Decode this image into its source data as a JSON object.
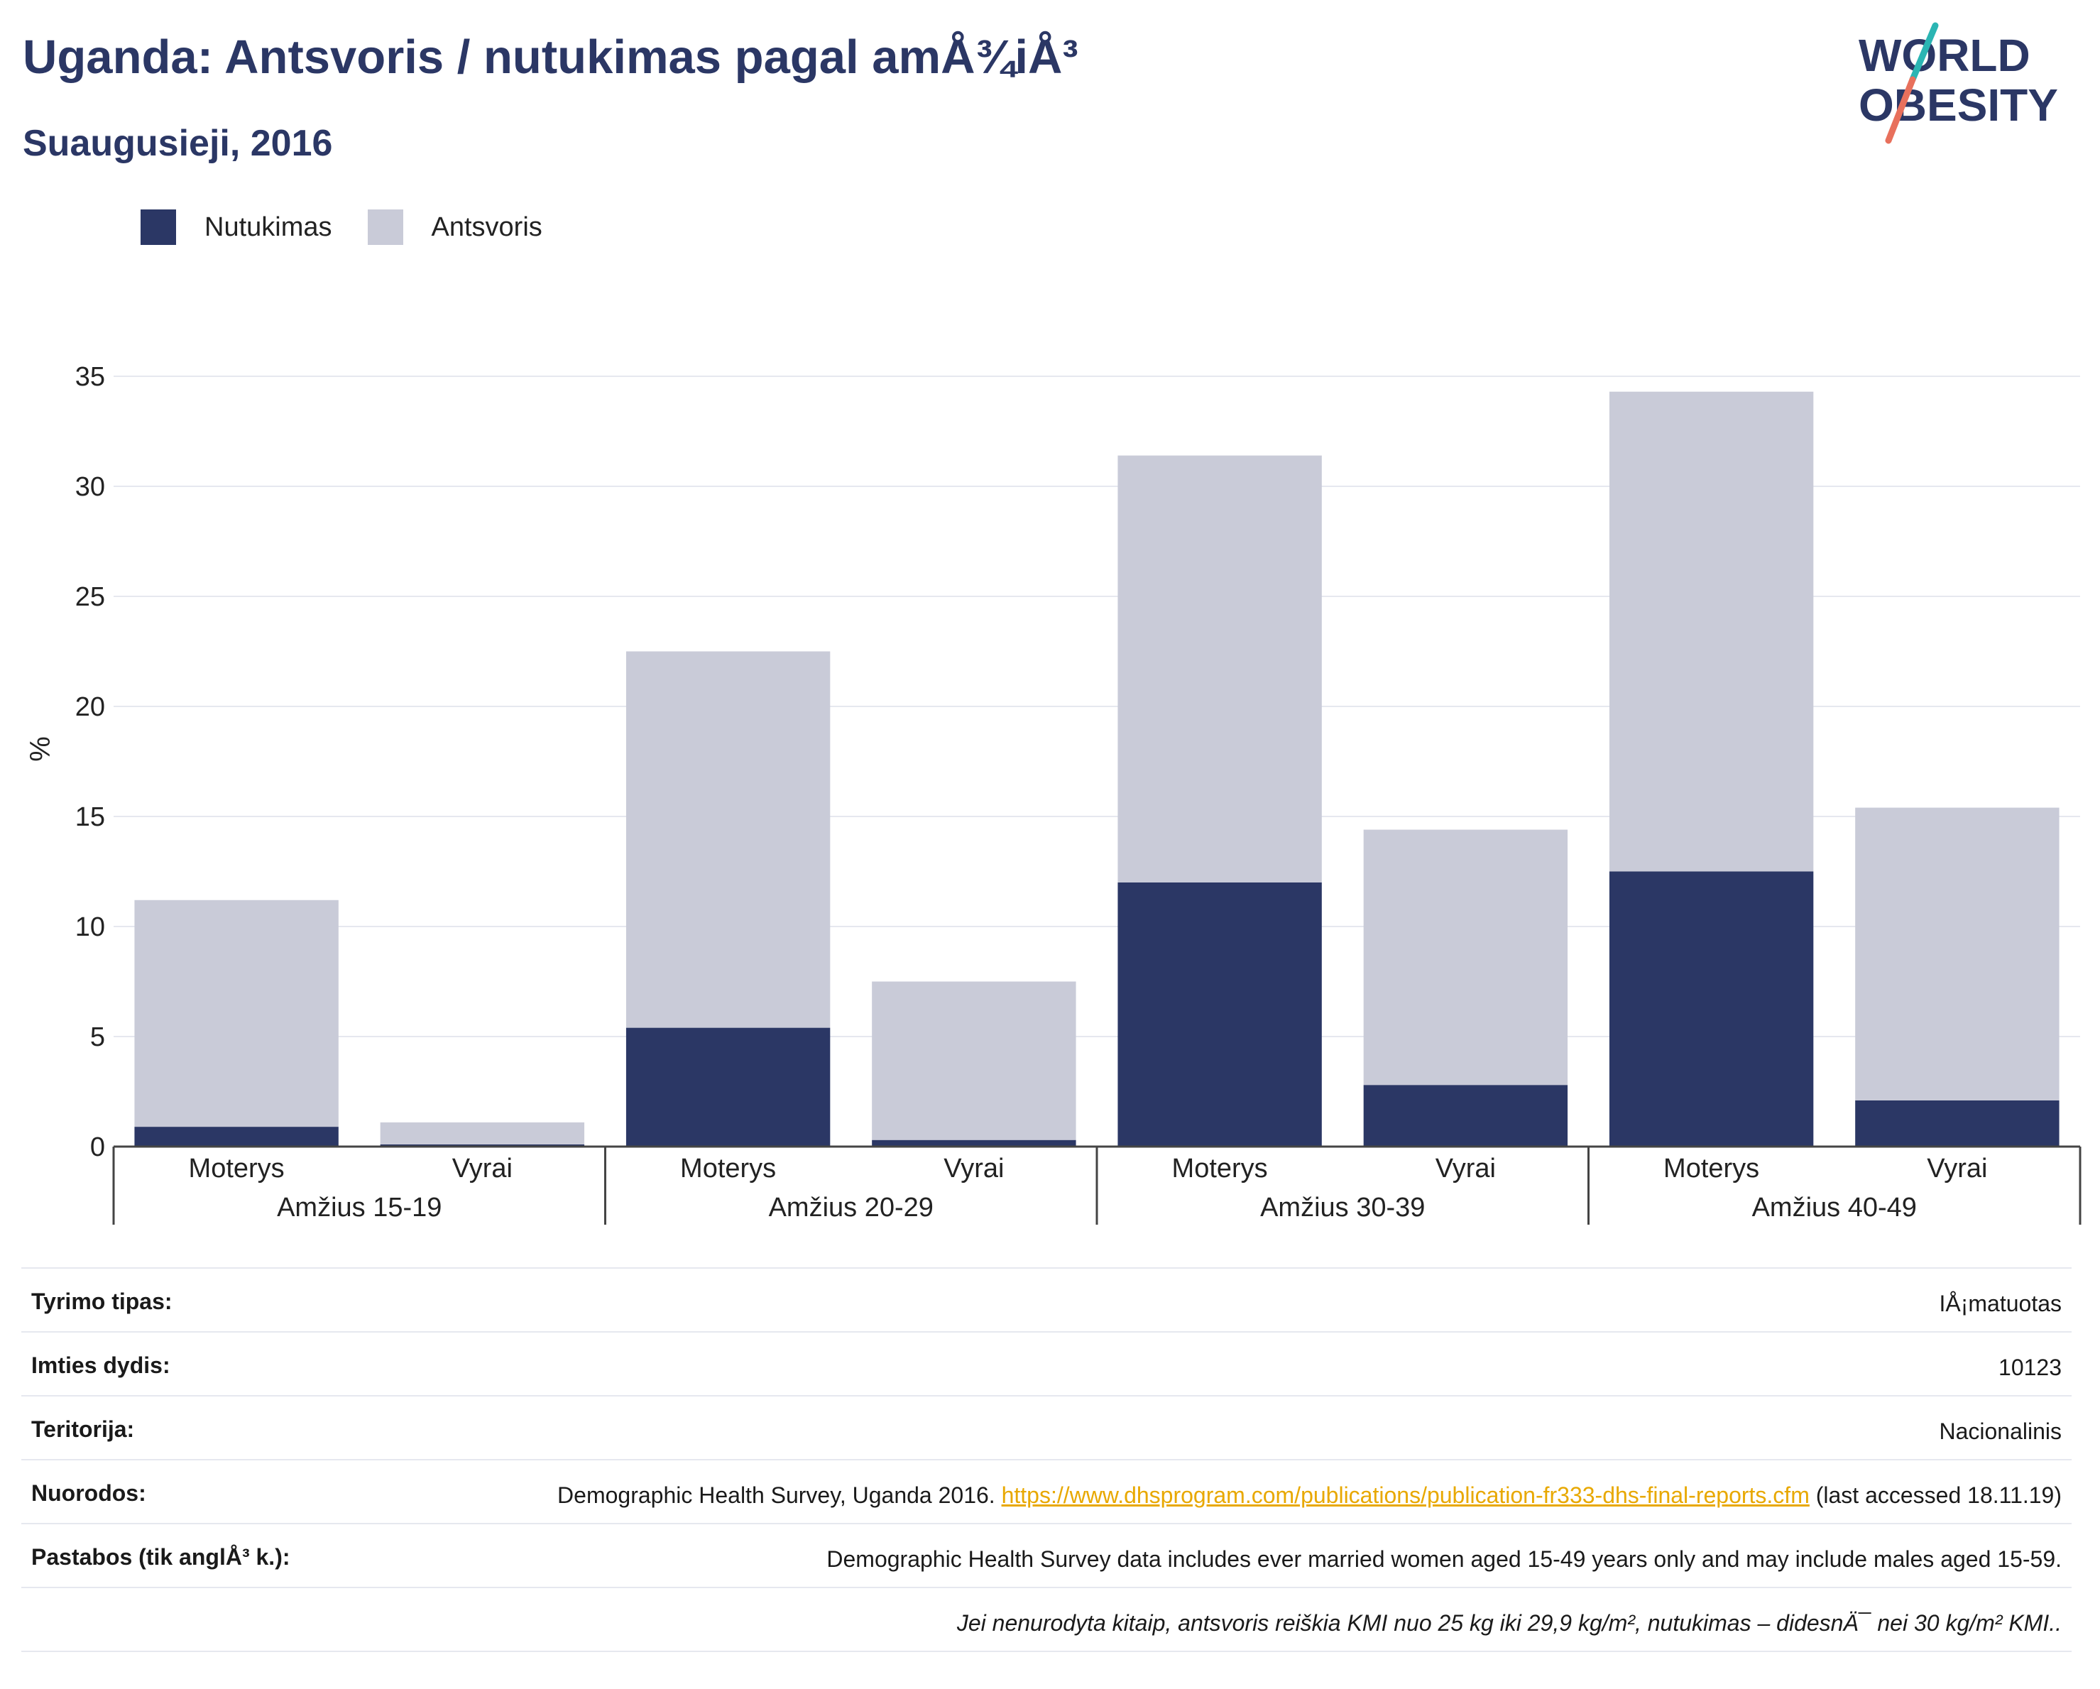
{
  "title": "Uganda: Antsvoris / nutukimas pagal amÅ¾iÅ³",
  "subtitle": "Suaugusieji, 2016",
  "logo": {
    "line1": "WORLD",
    "line2": "OBESITY"
  },
  "colors": {
    "obesity": "#2b3765",
    "overweight": "#c9cbd8",
    "title": "#2b3765",
    "link": "#e8a800"
  },
  "legend": [
    {
      "label": "Nutukimas",
      "color": "#2b3765"
    },
    {
      "label": "Antsvoris",
      "color": "#c9cbd8"
    }
  ],
  "chart_data": {
    "type": "bar",
    "stacked": true,
    "ylabel": "%",
    "ylim": [
      0,
      35
    ],
    "yticks": [
      0,
      5,
      10,
      15,
      20,
      25,
      30,
      35
    ],
    "grid": true,
    "legend_position": "top-left",
    "groups": [
      "Amžius 15-19",
      "Amžius 20-29",
      "Amžius 30-39",
      "Amžius 40-49"
    ],
    "categories": [
      "Moterys",
      "Vyrai",
      "Moterys",
      "Vyrai",
      "Moterys",
      "Vyrai",
      "Moterys",
      "Vyrai"
    ],
    "series": [
      {
        "name": "Nutukimas",
        "values": [
          0.9,
          0.1,
          5.4,
          0.3,
          12.0,
          2.8,
          12.5,
          2.1
        ]
      },
      {
        "name": "Antsvoris",
        "values": [
          10.3,
          1.0,
          17.1,
          7.2,
          19.4,
          11.6,
          21.8,
          13.3
        ]
      }
    ]
  },
  "info": {
    "survey_type": {
      "label": "Tyrimo tipas:",
      "value": "IÅ¡matuotas"
    },
    "sample_size": {
      "label": "Imties dydis:",
      "value": "10123"
    },
    "territory": {
      "label": "Teritorija:",
      "value": "Nacionalinis"
    },
    "references": {
      "label": "Nuorodos:",
      "text": "Demographic Health Survey, Uganda 2016.",
      "url": "https://www.dhsprogram.com/publications/publication-fr333-dhs-final-reports.cfm",
      "suffix": "(last accessed 18.11.19)"
    },
    "notes": {
      "label": "Pastabos (tik anglÅ³ k.):",
      "value": "Demographic Health Survey data includes ever married women aged 15-49 years only and may include males aged 15-59."
    },
    "footnote": "Jei nenurodyta kitaip, antsvoris reiškia KMI nuo 25 kg iki 29,9 kg/m², nutukimas – didesnÄ¯ nei 30 kg/m² KMI.."
  }
}
